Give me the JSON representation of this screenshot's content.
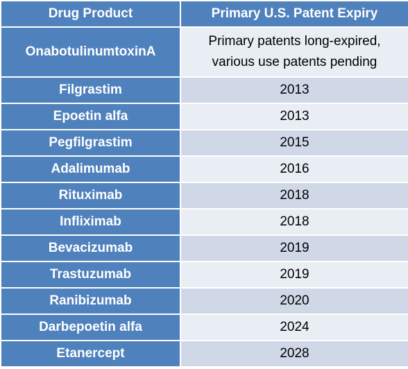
{
  "table": {
    "headers": [
      "Drug Product",
      "Primary U.S. Patent Expiry"
    ],
    "rows": [
      {
        "drug": "OnabotulinumtoxinA",
        "expiry_lines": [
          "Primary patents long-expired,",
          "various use patents pending"
        ]
      },
      {
        "drug": "Filgrastim",
        "expiry": "2013"
      },
      {
        "drug": "Epoetin alfa",
        "expiry": "2013"
      },
      {
        "drug": "Pegfilgrastim",
        "expiry": "2015"
      },
      {
        "drug": "Adalimumab",
        "expiry": "2016"
      },
      {
        "drug": "Rituximab",
        "expiry": "2018"
      },
      {
        "drug": "Infliximab",
        "expiry": "2018"
      },
      {
        "drug": "Bevacizumab",
        "expiry": "2019"
      },
      {
        "drug": "Trastuzumab",
        "expiry": "2019"
      },
      {
        "drug": "Ranibizumab",
        "expiry": "2020"
      },
      {
        "drug": "Darbepoetin alfa",
        "expiry": "2024"
      },
      {
        "drug": "Etanercept",
        "expiry": "2028"
      }
    ]
  },
  "colors": {
    "header_bg": "#4f81bd",
    "header_text": "#ffffff",
    "row_light": "#e9edf4",
    "row_dark": "#d0d8e8"
  }
}
